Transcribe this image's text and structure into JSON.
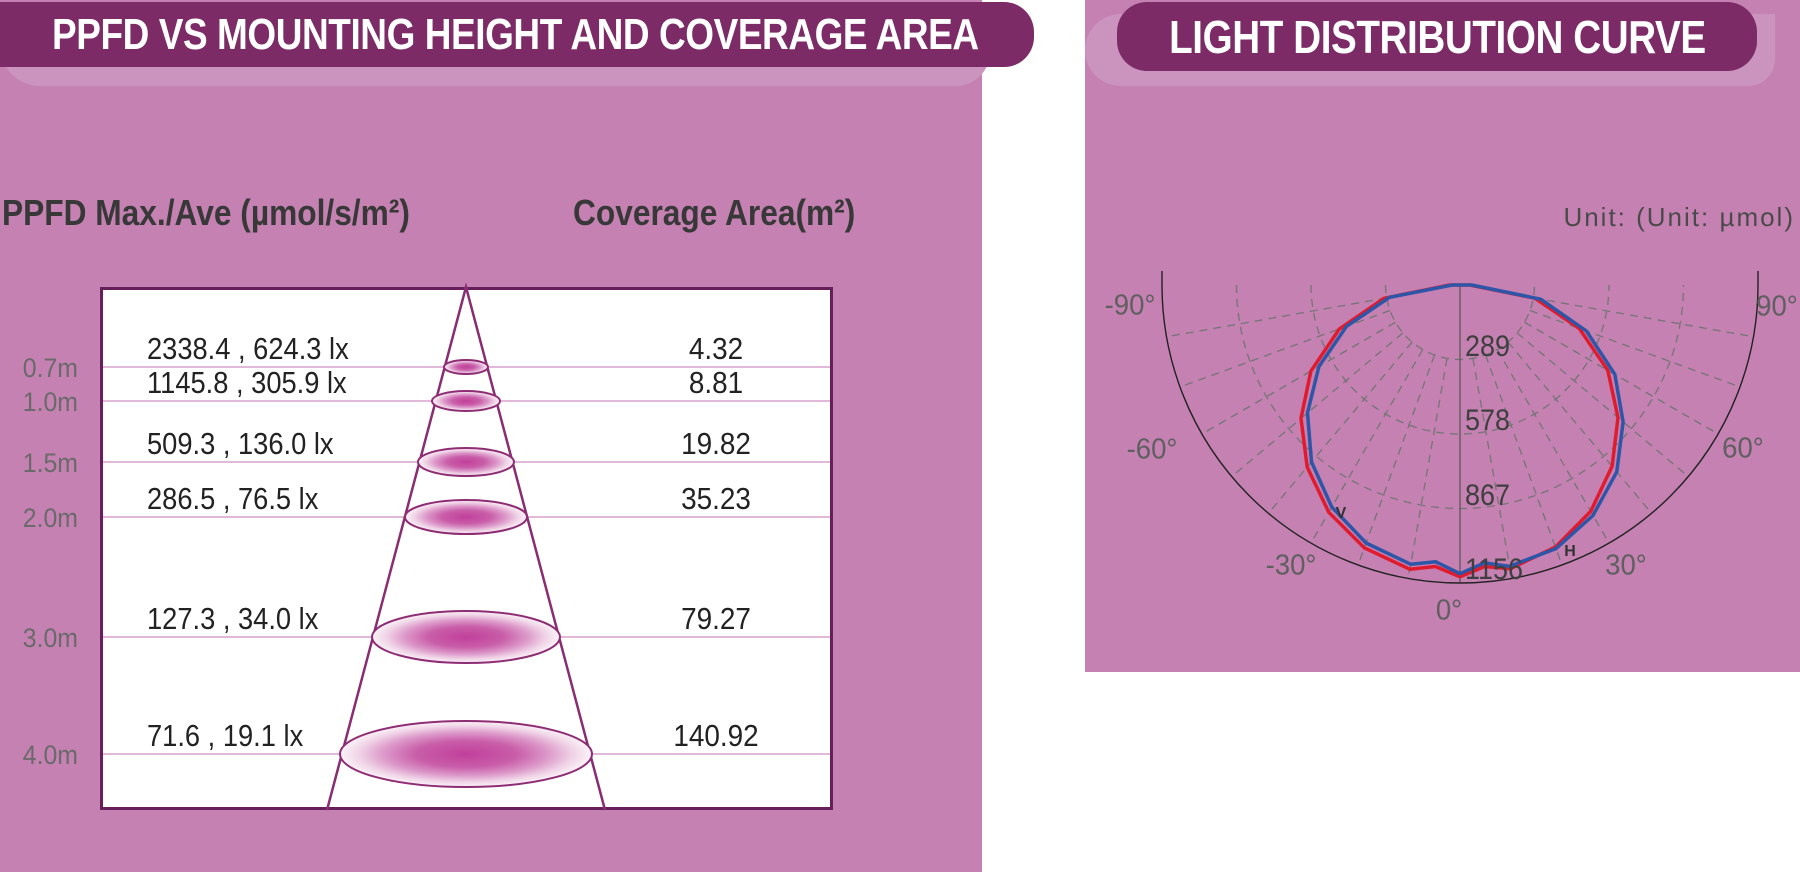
{
  "left_panel": {
    "title": "PPFD VS MOUNTING HEIGHT AND COVERAGE AREA",
    "col1_header": "PPFD Max./Ave (µmol/s/m²)",
    "col2_header": "Coverage Area(m²)",
    "rows": [
      {
        "height": "0.7m",
        "ppfd": "2338.4 , 624.3 lx",
        "coverage": "4.32"
      },
      {
        "height": "1.0m",
        "ppfd": "1145.8 , 305.9 lx",
        "coverage": "8.81"
      },
      {
        "height": "1.5m",
        "ppfd": "509.3 , 136.0 lx",
        "coverage": "19.82"
      },
      {
        "height": "2.0m",
        "ppfd": "286.5 , 76.5 lx",
        "coverage": "35.23"
      },
      {
        "height": "3.0m",
        "ppfd": "127.3 , 34.0 lx",
        "coverage": "79.27"
      },
      {
        "height": "4.0m",
        "ppfd": "71.6 , 19.1 lx",
        "coverage": "140.92"
      }
    ]
  },
  "right_panel": {
    "title": "LIGHT DISTRIBUTION CURVE",
    "unit_label": "Unit: (Unit: µmol)",
    "curve_markers": {
      "red": "V",
      "blue": "H"
    }
  },
  "colors": {
    "panel_bg": "#c481b2",
    "banner_bg": "#7c2b66",
    "banner_shadow": "#cb94bf",
    "box_border": "#671f5c",
    "cone_stroke": "#8a2c72",
    "row_line": "#d8a0cb",
    "curve_red": "#e11b2e",
    "curve_blue": "#2d56a8",
    "grid_gray": "#757575",
    "arc_black": "#222222"
  },
  "chart_data": [
    {
      "type": "table",
      "title": "PPFD VS MOUNTING HEIGHT AND COVERAGE AREA",
      "description": "PPFD max/average and coverage area versus mounting height",
      "rows": [
        {
          "mounting_height_m": 0.7,
          "ppfd_max": 2338.4,
          "ppfd_ave_lx": 624.3,
          "coverage_area_m2": 4.32
        },
        {
          "mounting_height_m": 1.0,
          "ppfd_max": 1145.8,
          "ppfd_ave_lx": 305.9,
          "coverage_area_m2": 8.81
        },
        {
          "mounting_height_m": 1.5,
          "ppfd_max": 509.3,
          "ppfd_ave_lx": 136.0,
          "coverage_area_m2": 19.82
        },
        {
          "mounting_height_m": 2.0,
          "ppfd_max": 286.5,
          "ppfd_ave_lx": 76.5,
          "coverage_area_m2": 35.23
        },
        {
          "mounting_height_m": 3.0,
          "ppfd_max": 127.3,
          "ppfd_ave_lx": 34.0,
          "coverage_area_m2": 79.27
        },
        {
          "mounting_height_m": 4.0,
          "ppfd_max": 71.6,
          "ppfd_ave_lx": 19.1,
          "coverage_area_m2": 140.92
        }
      ]
    },
    {
      "type": "line",
      "subtype": "polar",
      "title": "LIGHT DISTRIBUTION CURVE",
      "unit": "Unit: (Unit: µmol)",
      "angle_labels": [
        "-90°",
        "-60°",
        "-30°",
        "0°",
        "30°",
        "60°",
        "90°"
      ],
      "radial_ticks": [
        289,
        578,
        867,
        1156
      ],
      "radial_max": 1156,
      "grid": true,
      "series": [
        {
          "name": "V",
          "color": "#e11b2e",
          "angles_deg": [
            -90,
            -80,
            -70,
            -60,
            -50,
            -40,
            -30,
            -20,
            -10,
            -5,
            0,
            5,
            10,
            20,
            30,
            40,
            50,
            60,
            70,
            80,
            90
          ],
          "values": [
            40,
            300,
            498,
            668,
            805,
            922,
            1018,
            1085,
            1120,
            1096,
            1132,
            1096,
            1118,
            1082,
            1014,
            918,
            800,
            662,
            492,
            295,
            38
          ]
        },
        {
          "name": "H",
          "color": "#2d56a8",
          "angles_deg": [
            -90,
            -80,
            -70,
            -60,
            -50,
            -40,
            -30,
            -20,
            -10,
            -5,
            0,
            5,
            10,
            20,
            30,
            40,
            50,
            60,
            70,
            80,
            90
          ],
          "values": [
            30,
            278,
            468,
            632,
            772,
            896,
            995,
            1065,
            1100,
            1078,
            1120,
            1082,
            1108,
            1088,
            1032,
            946,
            826,
            694,
            522,
            318,
            45
          ]
        }
      ]
    }
  ]
}
